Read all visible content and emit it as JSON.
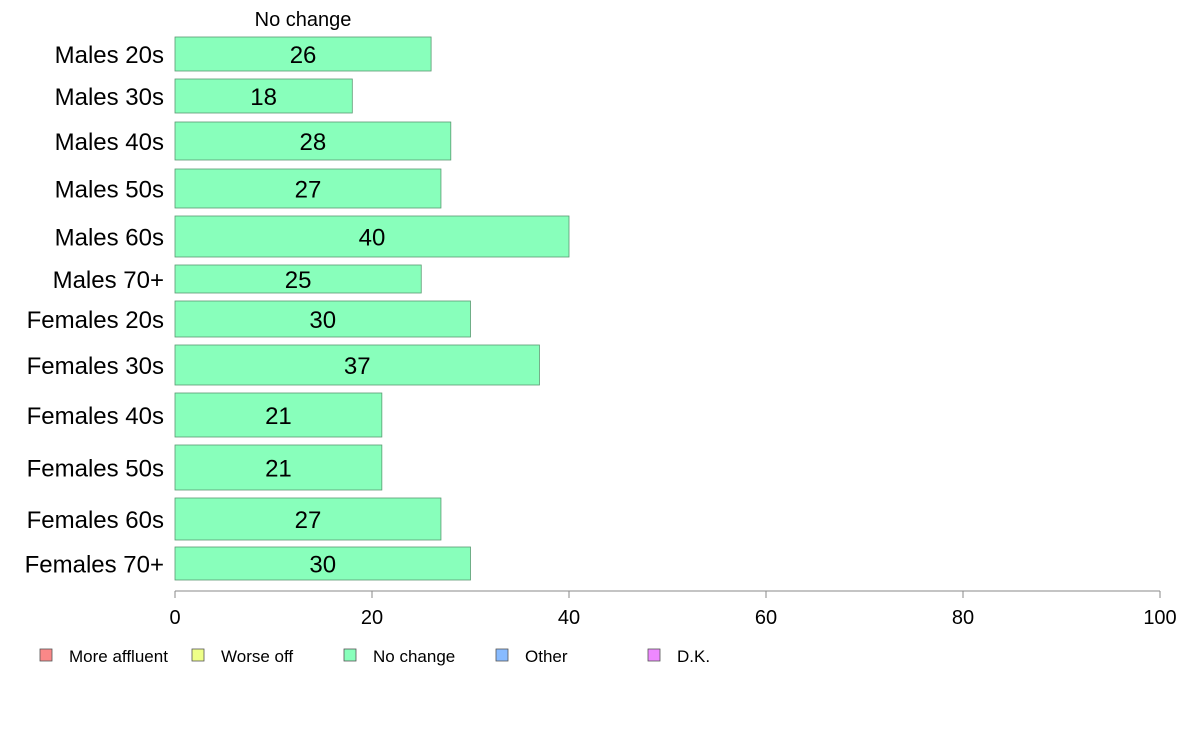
{
  "chart_data": {
    "type": "bar",
    "orientation": "horizontal",
    "stacked": true,
    "title": "",
    "xlabel": "",
    "ylabel": "",
    "xlim": [
      0,
      100
    ],
    "xticks": [
      0,
      20,
      40,
      60,
      80,
      100
    ],
    "grid": false,
    "legend_position": "bottom",
    "categories": [
      "Males 20s",
      "Males 30s",
      "Males 40s",
      "Males 50s",
      "Males 60s",
      "Males 70+",
      "Females 20s",
      "Females 30s",
      "Females 40s",
      "Females 50s",
      "Females 60s",
      "Females 70+"
    ],
    "series": [
      {
        "name": "More affluent",
        "color": "#fa8888",
        "values": [
          0,
          0,
          0,
          0,
          0,
          0,
          0,
          0,
          0,
          0,
          0,
          0
        ]
      },
      {
        "name": "Worse off",
        "color": "#eeff88",
        "values": [
          0,
          0,
          0,
          0,
          0,
          0,
          0,
          0,
          0,
          0,
          0,
          0
        ]
      },
      {
        "name": "No change",
        "color": "#88ffbb",
        "values": [
          26,
          18,
          28,
          27,
          40,
          25,
          30,
          37,
          21,
          21,
          27,
          30
        ]
      },
      {
        "name": "Other",
        "color": "#88bbff",
        "values": [
          0,
          0,
          0,
          0,
          0,
          0,
          0,
          0,
          0,
          0,
          0,
          0
        ]
      },
      {
        "name": "D.K.",
        "color": "#ee88ff",
        "values": [
          0,
          0,
          0,
          0,
          0,
          0,
          0,
          0,
          0,
          0,
          0,
          0
        ]
      }
    ],
    "value_labels": [
      "26",
      "18",
      "28",
      "27",
      "40",
      "25",
      "30",
      "37",
      "21",
      "21",
      "27",
      "30"
    ],
    "top_series_label": "No change"
  }
}
